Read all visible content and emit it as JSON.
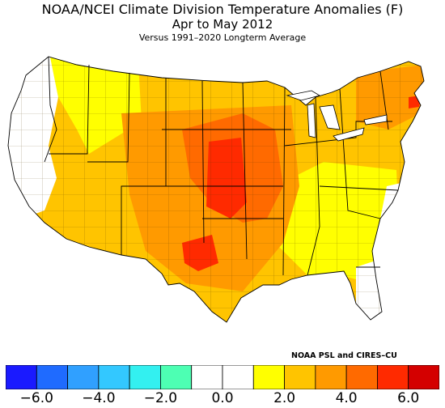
{
  "title": "NOAA/NCEI Climate Division Temperature Anomalies (F)",
  "period": "Apr to May 2012",
  "baseline": "Versus 1991–2020 Longterm Average",
  "credit": "NOAA PSL and CIRES–CU",
  "colorbar": {
    "colors": [
      "#1a1aff",
      "#1f6bff",
      "#30a0ff",
      "#33c8ff",
      "#33f0f0",
      "#4dffb3",
      "#ffffff",
      "#ffffff",
      "#ffff00",
      "#ffc400",
      "#ff9a00",
      "#ff6a00",
      "#ff2a00",
      "#d40000"
    ],
    "ticks": [
      {
        "label": "−6.0",
        "value": -6.0
      },
      {
        "label": "−4.0",
        "value": -4.0
      },
      {
        "label": "−2.0",
        "value": -2.0
      },
      {
        "label": "0.0",
        "value": 0.0
      },
      {
        "label": "2.0",
        "value": 2.0
      },
      {
        "label": "4.0",
        "value": 4.0
      },
      {
        "label": "6.0",
        "value": 6.0
      }
    ],
    "range": [
      -7.0,
      7.0
    ]
  },
  "map": {
    "colors": {
      "land_neutral": "#ffffff",
      "water": "#ffffff",
      "border": "#000000"
    }
  }
}
